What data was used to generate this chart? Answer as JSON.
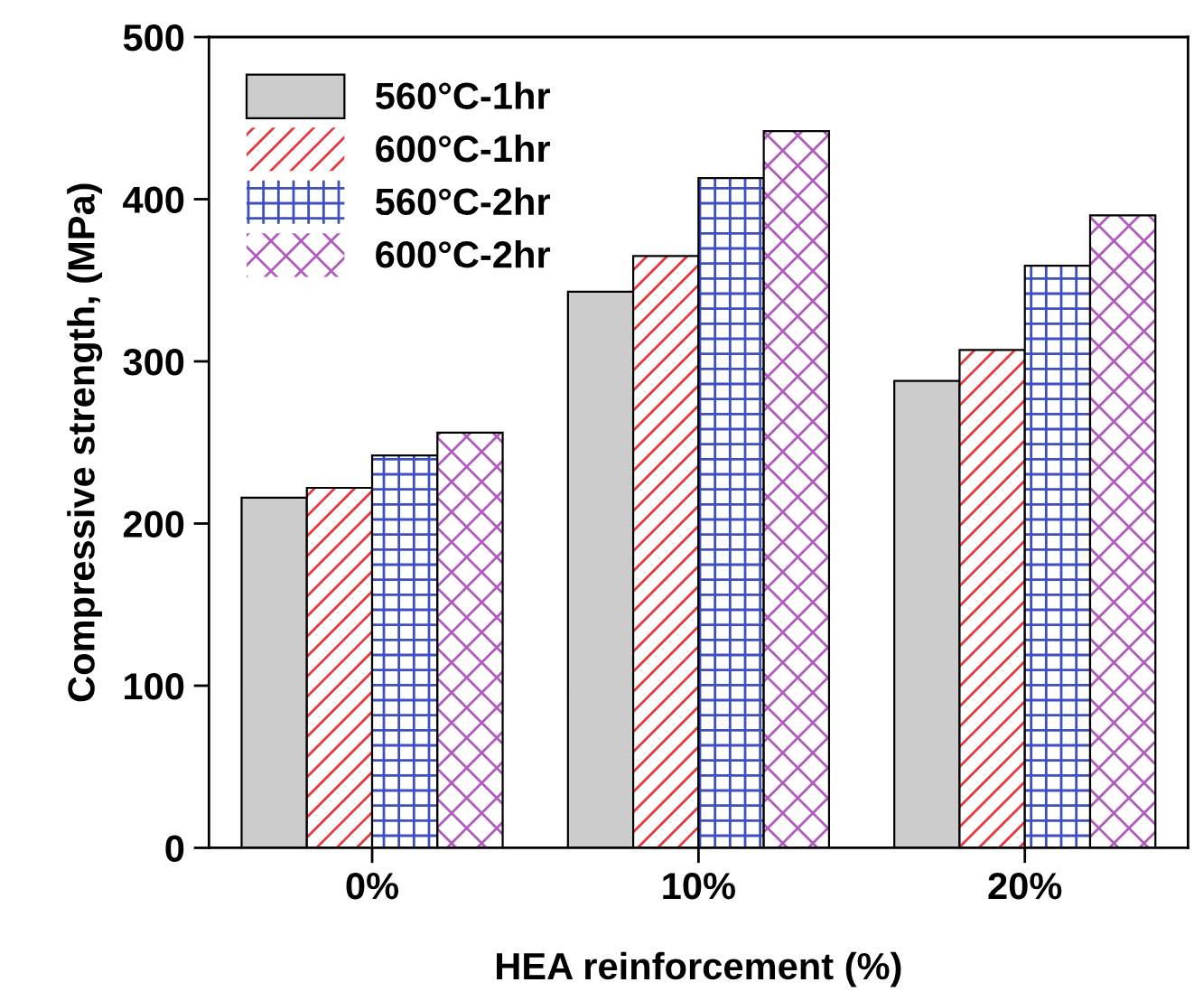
{
  "chart_data": {
    "type": "bar",
    "xlabel": "HEA reinforcement (%)",
    "ylabel": "Compressive strength, (MPa)",
    "categories": [
      "0%",
      "10%",
      "20%"
    ],
    "series": [
      {
        "name": "560°C-1hr",
        "color": "#cccccc",
        "values": [
          216,
          343,
          288
        ]
      },
      {
        "name": "600°C-1hr",
        "color": "#e8383d",
        "values": [
          222,
          365,
          307
        ]
      },
      {
        "name": "560°C-2hr",
        "color": "#3f4fbf",
        "values": [
          242,
          413,
          359
        ]
      },
      {
        "name": "600°C-2hr",
        "color": "#b25bbf",
        "values": [
          256,
          442,
          390
        ]
      }
    ],
    "ylim": [
      0,
      500
    ],
    "yticks": [
      0,
      100,
      200,
      300,
      400,
      500
    ],
    "grid": false,
    "legend": "top left"
  }
}
